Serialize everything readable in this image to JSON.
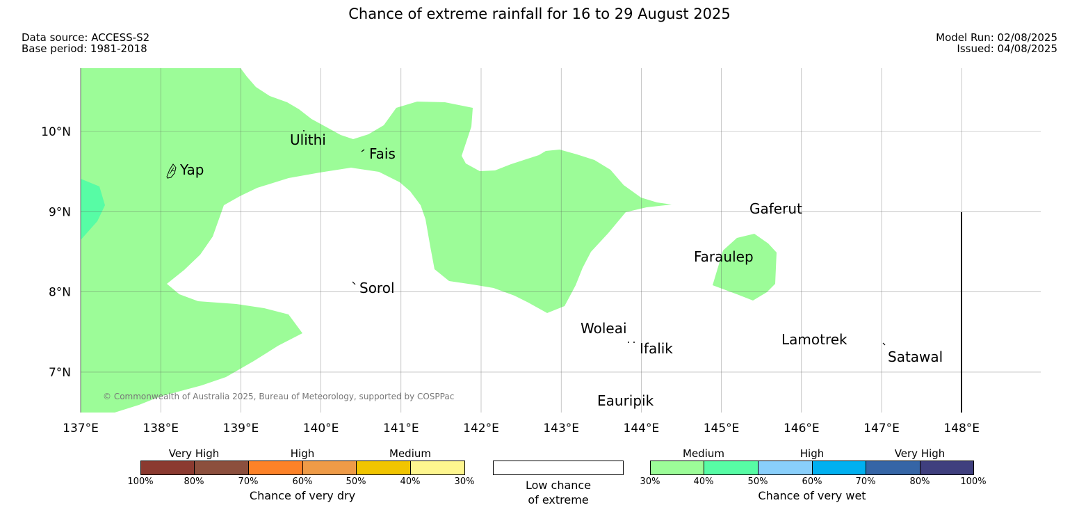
{
  "title": "Chance of extreme rainfall for 16 to 29 August 2025",
  "meta": {
    "data_source": "Data source: ACCESS-S2",
    "base_period": "Base period: 1981-2018",
    "model_run": "Model Run: 02/08/2025",
    "issued": "Issued: 04/08/2025"
  },
  "map": {
    "lon_range": [
      137,
      149
    ],
    "lat_range": [
      6.5,
      10.8
    ],
    "x_ticks": [
      "137°E",
      "138°E",
      "139°E",
      "140°E",
      "141°E",
      "142°E",
      "143°E",
      "144°E",
      "145°E",
      "146°E",
      "147°E",
      "148°E"
    ],
    "y_ticks": [
      "10°N",
      "9°N",
      "8°N",
      "7°N"
    ],
    "places": [
      {
        "name": "Ulithi",
        "lon": 139.8,
        "lat": 10.0
      },
      {
        "name": "Fais",
        "lon": 140.5,
        "lat": 9.76
      },
      {
        "name": "Yap",
        "lon": 138.1,
        "lat": 9.5
      },
      {
        "name": "Gaferut",
        "lon": 145.4,
        "lat": 9.1
      },
      {
        "name": "Faraulep",
        "lon": 144.6,
        "lat": 8.5
      },
      {
        "name": "Sorol",
        "lon": 140.4,
        "lat": 8.1
      },
      {
        "name": "Woleai",
        "lon": 143.9,
        "lat": 7.4
      },
      {
        "name": "Ifalik",
        "lon": 144.4,
        "lat": 7.3
      },
      {
        "name": "Lamotrek",
        "lon": 145.8,
        "lat": 7.4
      },
      {
        "name": "Satawal",
        "lon": 147.0,
        "lat": 7.4
      },
      {
        "name": "Eauripik",
        "lon": 143.0,
        "lat": 6.6
      }
    ],
    "copyright": "© Commonwealth of Australia 2025, Bureau of Meteorology, supported by COSPPac",
    "shading": [
      {
        "category": "Chance of very wet 30%-40%",
        "color": "#9cfc98"
      },
      {
        "category": "Chance of very wet 40%-50%",
        "color": "#57fca5"
      }
    ]
  },
  "legend": {
    "dry": {
      "categories": [
        "Very High",
        "High",
        "Medium"
      ],
      "ticks": [
        "100%",
        "80%",
        "70%",
        "60%",
        "50%",
        "40%",
        "30%"
      ],
      "colors": [
        "#8b3a30",
        "#8c4f3d",
        "#fd8228",
        "#ef9b47",
        "#f1c500",
        "#fef68f"
      ],
      "caption": "Chance of very dry"
    },
    "low": {
      "caption_line1": "Low chance",
      "caption_line2": "of extreme",
      "color": "#ffffff"
    },
    "wet": {
      "categories": [
        "Medium",
        "High",
        "Very High"
      ],
      "ticks": [
        "30%",
        "40%",
        "50%",
        "60%",
        "70%",
        "80%",
        "100%"
      ],
      "colors": [
        "#9cfc98",
        "#57fca5",
        "#89cffb",
        "#00b0f0",
        "#3565a6",
        "#3f3f7e"
      ],
      "caption": "Chance of very wet"
    }
  }
}
